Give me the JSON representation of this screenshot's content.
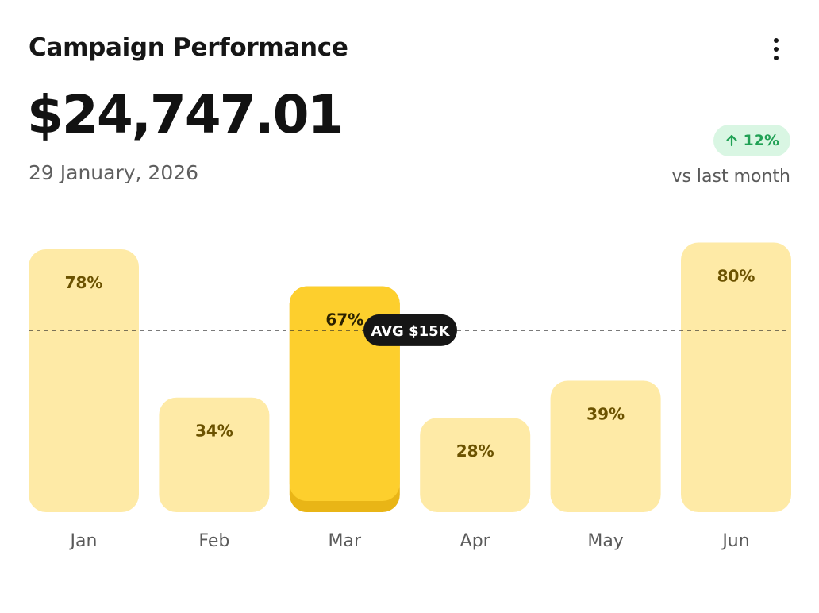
{
  "header": {
    "title": "Campaign Performance",
    "menu_icon": "more-vertical-icon"
  },
  "summary": {
    "amount": "$24,747.01",
    "date": "29 January, 2026",
    "change_badge": "12%",
    "change_icon": "arrow-up-icon",
    "change_caption": "vs last month"
  },
  "colors": {
    "bar": "#feeaa6",
    "bar_active": "#fdcf2d",
    "bar_active_shadow": "#e9b516",
    "badge_bg": "#d9f6e3",
    "badge_fg": "#21a155",
    "avg_pill": "#161616"
  },
  "chart_data": {
    "type": "bar",
    "categories": [
      "Jan",
      "Feb",
      "Mar",
      "Apr",
      "May",
      "Jun"
    ],
    "values": [
      78,
      34,
      67,
      28,
      39,
      80
    ],
    "value_labels": [
      "78%",
      "34%",
      "67%",
      "28%",
      "39%",
      "80%"
    ],
    "highlighted_category": "Mar",
    "average_line": {
      "label": "AVG $15K",
      "value": 54
    },
    "ylim": [
      0,
      86
    ],
    "grid": false,
    "legend": "none"
  }
}
